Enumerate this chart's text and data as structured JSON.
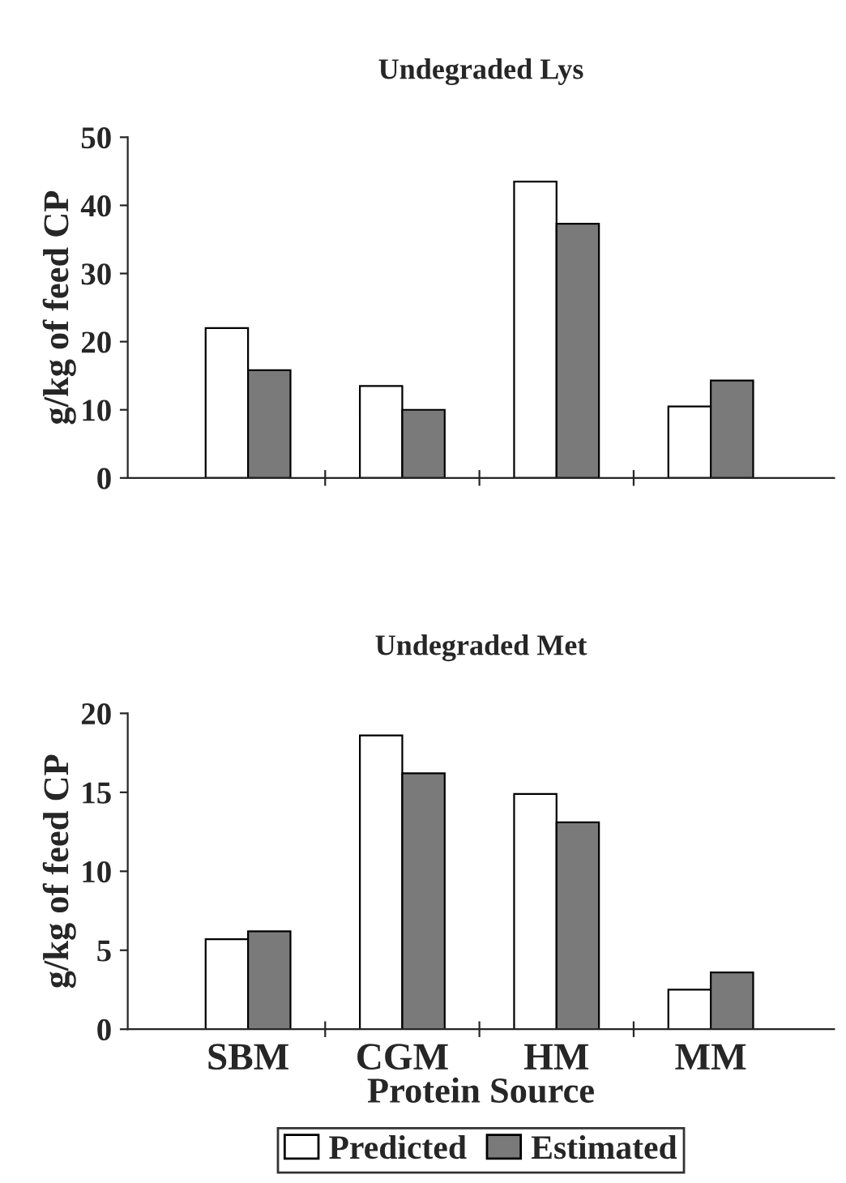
{
  "chart_data": [
    {
      "type": "bar",
      "title": "Undegraded Lys",
      "ylabel": "g/kg of feed CP",
      "categories": [
        null,
        null,
        null,
        null
      ],
      "series": [
        {
          "color": "#ffffff",
          "values": [
            22,
            13.5,
            43.5,
            10.5
          ]
        },
        {
          "color": "#7a7a7a",
          "values": [
            15.8,
            10,
            37.3,
            14.3
          ]
        }
      ],
      "ylim": [
        0,
        50
      ],
      "yticks": [
        0,
        10,
        20,
        30,
        40,
        50
      ],
      "tick_labels": "y",
      "grid": false
    },
    {
      "type": "bar",
      "title": "Undegraded Met",
      "ylabel": "g/kg of feed CP",
      "xlabel": "Protein Source",
      "categories": [
        "SBM",
        "CGM",
        "HM",
        "MM"
      ],
      "series": [
        {
          "name": "Predicted",
          "color": "#ffffff",
          "values": [
            5.7,
            18.6,
            14.9,
            2.5
          ]
        },
        {
          "name": "Estimated",
          "color": "#7a7a7a",
          "values": [
            6.2,
            16.2,
            13.1,
            3.6
          ]
        }
      ],
      "ylim": [
        0,
        20
      ],
      "yticks": [
        0,
        5,
        10,
        15,
        20
      ],
      "grid": false,
      "legend": "bottom"
    }
  ]
}
